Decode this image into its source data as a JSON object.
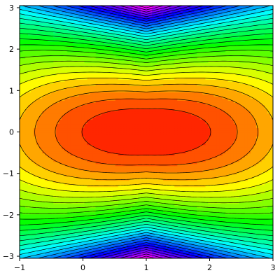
{
  "chart_data": {
    "type": "contour",
    "title": "",
    "xlabel": "",
    "ylabel": "",
    "xlim": [
      -1,
      3
    ],
    "ylim": [
      -3.05,
      3.05
    ],
    "x_ticks": [
      -1,
      0,
      1,
      2,
      3
    ],
    "y_ticks": [
      -3,
      -2,
      -1,
      0,
      1,
      2,
      3
    ],
    "x_tick_labels": [
      "−1",
      "0",
      "1",
      "2",
      "3"
    ],
    "y_tick_labels": [
      "−3",
      "−2",
      "−1",
      "0",
      "1",
      "2",
      "3"
    ],
    "field": "f(x, y) = y^2 + 0.3·(x − 1)^2 − 0.25·|x − 1|·y^2",
    "field_minimum": {
      "x": 1,
      "y": 0
    },
    "contour_levels": 30,
    "colormap": "hue (red at minimum through orange, yellow, green, cyan, blue, violet, magenta toward the edges)",
    "grid": false,
    "legend": "none"
  }
}
